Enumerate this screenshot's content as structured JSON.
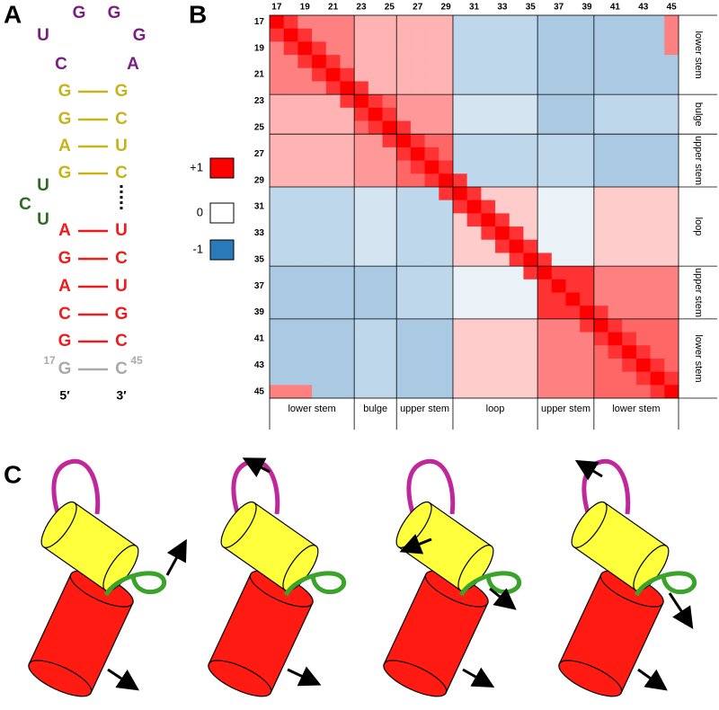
{
  "panel_labels": [
    "A",
    "B",
    "C"
  ],
  "structure": {
    "hairpin_loop": [
      "C",
      "U",
      "G",
      "G",
      "G",
      "A"
    ],
    "upper_stem": [
      [
        "G",
        "G"
      ],
      [
        "G",
        "C"
      ],
      [
        "A",
        "U"
      ],
      [
        "G",
        "C"
      ]
    ],
    "bulge": [
      "U",
      "C",
      "U"
    ],
    "lower_stem": [
      [
        "A",
        "U"
      ],
      [
        "G",
        "C"
      ],
      [
        "A",
        "U"
      ],
      [
        "C",
        "G"
      ],
      [
        "G",
        "C"
      ]
    ],
    "terminal_pair": [
      "G",
      "C"
    ],
    "terminal_numbers": [
      17,
      45
    ],
    "ends": [
      "5′",
      "3′"
    ]
  },
  "chart_data": {
    "type": "heatmap",
    "categories": [
      17,
      null,
      19,
      null,
      21,
      null,
      23,
      null,
      25,
      null,
      27,
      null,
      29,
      null,
      31,
      null,
      33,
      null,
      35,
      null,
      37,
      null,
      39,
      null,
      41,
      null,
      43,
      null,
      45
    ],
    "segments": [
      {
        "label": "lower stem",
        "range": [
          17,
          22
        ]
      },
      {
        "label": "bulge",
        "range": [
          23,
          25
        ]
      },
      {
        "label": "upper stem",
        "range": [
          26,
          29
        ]
      },
      {
        "label": "loop",
        "range": [
          30,
          35
        ]
      },
      {
        "label": "upper stem",
        "range": [
          36,
          39
        ]
      },
      {
        "label": "lower stem",
        "range": [
          40,
          45
        ]
      }
    ],
    "colorscale": {
      "ticks": [
        {
          "value": 1,
          "label": "+1"
        },
        0,
        -1
      ],
      "colors": [
        "#ff0000",
        "#ffffff",
        "#2a7ab9"
      ]
    },
    "values": [
      [
        1,
        0.8,
        0.5,
        0.5,
        0.5,
        0.5,
        0.3,
        0.3,
        0.3,
        0.3,
        0.3,
        0.3,
        0.3,
        -0.3,
        -0.3,
        -0.3,
        -0.3,
        -0.3,
        -0.3,
        -0.4,
        -0.4,
        -0.4,
        -0.4,
        -0.4,
        -0.4,
        -0.4,
        -0.4,
        -0.4,
        0.5
      ],
      [
        0.8,
        1,
        0.8,
        0.5,
        0.5,
        0.5,
        0.3,
        0.3,
        0.3,
        0.3,
        0.3,
        0.3,
        0.3,
        -0.3,
        -0.3,
        -0.3,
        -0.3,
        -0.3,
        -0.3,
        -0.4,
        -0.4,
        -0.4,
        -0.4,
        -0.4,
        -0.4,
        -0.4,
        -0.4,
        -0.4,
        0.5
      ],
      [
        0.5,
        0.8,
        1,
        0.8,
        0.5,
        0.5,
        0.3,
        0.3,
        0.3,
        0.3,
        0.3,
        0.3,
        0.3,
        -0.3,
        -0.3,
        -0.3,
        -0.3,
        -0.3,
        -0.3,
        -0.4,
        -0.4,
        -0.4,
        -0.4,
        -0.4,
        -0.4,
        -0.4,
        -0.4,
        -0.4,
        0.5
      ],
      [
        0.5,
        0.5,
        0.8,
        1,
        0.8,
        0.5,
        0.3,
        0.3,
        0.3,
        0.3,
        0.3,
        0.3,
        0.3,
        -0.3,
        -0.3,
        -0.3,
        -0.3,
        -0.3,
        -0.3,
        -0.4,
        -0.4,
        -0.4,
        -0.4,
        -0.4,
        -0.4,
        -0.4,
        -0.4,
        -0.4,
        -0.4
      ],
      [
        0.5,
        0.5,
        0.5,
        0.8,
        1,
        0.8,
        0.3,
        0.3,
        0.3,
        0.3,
        0.3,
        0.3,
        0.3,
        -0.3,
        -0.3,
        -0.3,
        -0.3,
        -0.3,
        -0.3,
        -0.4,
        -0.4,
        -0.4,
        -0.4,
        -0.4,
        -0.4,
        -0.4,
        -0.4,
        -0.4,
        -0.4
      ],
      [
        0.5,
        0.5,
        0.5,
        0.5,
        0.8,
        1,
        0.8,
        0.3,
        0.3,
        0.3,
        0.3,
        0.3,
        0.3,
        -0.3,
        -0.3,
        -0.3,
        -0.3,
        -0.3,
        -0.3,
        -0.4,
        -0.4,
        -0.4,
        -0.4,
        -0.4,
        -0.4,
        -0.4,
        -0.4,
        -0.4,
        -0.4
      ],
      [
        0.3,
        0.3,
        0.3,
        0.3,
        0.3,
        0.8,
        1,
        0.8,
        0.6,
        0.4,
        0.4,
        0.4,
        0.4,
        -0.2,
        -0.2,
        -0.2,
        -0.2,
        -0.2,
        -0.2,
        -0.4,
        -0.4,
        -0.4,
        -0.4,
        -0.3,
        -0.3,
        -0.3,
        -0.3,
        -0.3,
        -0.3
      ],
      [
        0.3,
        0.3,
        0.3,
        0.3,
        0.3,
        0.3,
        0.8,
        1,
        0.8,
        0.4,
        0.4,
        0.4,
        0.4,
        -0.2,
        -0.2,
        -0.2,
        -0.2,
        -0.2,
        -0.2,
        -0.4,
        -0.4,
        -0.4,
        -0.4,
        -0.3,
        -0.3,
        -0.3,
        -0.3,
        -0.3,
        -0.3
      ],
      [
        0.3,
        0.3,
        0.3,
        0.3,
        0.3,
        0.3,
        0.6,
        0.8,
        1,
        0.8,
        0.4,
        0.4,
        0.4,
        -0.2,
        -0.2,
        -0.2,
        -0.2,
        -0.2,
        -0.2,
        -0.4,
        -0.4,
        -0.4,
        -0.4,
        -0.3,
        -0.3,
        -0.3,
        -0.3,
        -0.3,
        -0.3
      ],
      [
        0.3,
        0.3,
        0.3,
        0.3,
        0.3,
        0.3,
        0.4,
        0.4,
        0.8,
        1,
        0.8,
        0.6,
        0.6,
        -0.3,
        -0.3,
        -0.3,
        -0.3,
        -0.3,
        -0.3,
        -0.3,
        -0.3,
        -0.3,
        -0.3,
        -0.4,
        -0.4,
        -0.4,
        -0.4,
        -0.4,
        -0.4
      ],
      [
        0.3,
        0.3,
        0.3,
        0.3,
        0.3,
        0.3,
        0.4,
        0.4,
        0.4,
        0.8,
        1,
        0.8,
        0.6,
        -0.3,
        -0.3,
        -0.3,
        -0.3,
        -0.3,
        -0.3,
        -0.3,
        -0.3,
        -0.3,
        -0.3,
        -0.4,
        -0.4,
        -0.4,
        -0.4,
        -0.4,
        -0.4
      ],
      [
        0.3,
        0.3,
        0.3,
        0.3,
        0.3,
        0.3,
        0.4,
        0.4,
        0.4,
        0.6,
        0.8,
        1,
        0.8,
        -0.3,
        -0.3,
        -0.3,
        -0.3,
        -0.3,
        -0.3,
        -0.3,
        -0.3,
        -0.3,
        -0.3,
        -0.4,
        -0.4,
        -0.4,
        -0.4,
        -0.4,
        -0.4
      ],
      [
        0.3,
        0.3,
        0.3,
        0.3,
        0.3,
        0.3,
        0.4,
        0.4,
        0.4,
        0.6,
        0.6,
        0.8,
        1,
        0.8,
        -0.3,
        -0.3,
        -0.3,
        -0.3,
        -0.3,
        -0.3,
        -0.3,
        -0.3,
        -0.3,
        -0.4,
        -0.4,
        -0.4,
        -0.4,
        -0.4,
        -0.4
      ],
      [
        -0.3,
        -0.3,
        -0.3,
        -0.3,
        -0.3,
        -0.3,
        -0.2,
        -0.2,
        -0.2,
        -0.3,
        -0.3,
        -0.3,
        0.8,
        1,
        0.8,
        0.2,
        0.2,
        0.2,
        0.2,
        -0.1,
        -0.1,
        -0.1,
        -0.1,
        0.2,
        0.2,
        0.2,
        0.2,
        0.2,
        0.2
      ],
      [
        -0.3,
        -0.3,
        -0.3,
        -0.3,
        -0.3,
        -0.3,
        -0.2,
        -0.2,
        -0.2,
        -0.3,
        -0.3,
        -0.3,
        -0.3,
        0.8,
        1,
        0.8,
        0.2,
        0.2,
        0.2,
        -0.1,
        -0.1,
        -0.1,
        -0.1,
        0.2,
        0.2,
        0.2,
        0.2,
        0.2,
        0.2
      ],
      [
        -0.3,
        -0.3,
        -0.3,
        -0.3,
        -0.3,
        -0.3,
        -0.2,
        -0.2,
        -0.2,
        -0.3,
        -0.3,
        -0.3,
        -0.3,
        0.2,
        0.8,
        1,
        0.8,
        0.2,
        0.2,
        -0.1,
        -0.1,
        -0.1,
        -0.1,
        0.2,
        0.2,
        0.2,
        0.2,
        0.2,
        0.2
      ],
      [
        -0.3,
        -0.3,
        -0.3,
        -0.3,
        -0.3,
        -0.3,
        -0.2,
        -0.2,
        -0.2,
        -0.3,
        -0.3,
        -0.3,
        -0.3,
        0.2,
        0.2,
        0.8,
        1,
        0.8,
        0.2,
        -0.1,
        -0.1,
        -0.1,
        -0.1,
        0.2,
        0.2,
        0.2,
        0.2,
        0.2,
        0.2
      ],
      [
        -0.3,
        -0.3,
        -0.3,
        -0.3,
        -0.3,
        -0.3,
        -0.2,
        -0.2,
        -0.2,
        -0.3,
        -0.3,
        -0.3,
        -0.3,
        0.2,
        0.2,
        0.2,
        0.8,
        1,
        0.8,
        -0.1,
        -0.1,
        -0.1,
        -0.1,
        0.2,
        0.2,
        0.2,
        0.2,
        0.2,
        0.2
      ],
      [
        -0.3,
        -0.3,
        -0.3,
        -0.3,
        -0.3,
        -0.3,
        -0.2,
        -0.2,
        -0.2,
        -0.3,
        -0.3,
        -0.3,
        -0.3,
        0.2,
        0.2,
        0.2,
        0.2,
        0.8,
        1,
        0.8,
        -0.1,
        -0.1,
        -0.1,
        0.2,
        0.2,
        0.2,
        0.2,
        0.2,
        0.2
      ],
      [
        -0.4,
        -0.4,
        -0.4,
        -0.4,
        -0.4,
        -0.4,
        -0.4,
        -0.4,
        -0.4,
        -0.3,
        -0.3,
        -0.3,
        -0.3,
        -0.1,
        -0.1,
        -0.1,
        -0.1,
        -0.1,
        0.8,
        1,
        0.8,
        0.8,
        0.8,
        0.5,
        0.5,
        0.5,
        0.5,
        0.5,
        0.5
      ],
      [
        -0.4,
        -0.4,
        -0.4,
        -0.4,
        -0.4,
        -0.4,
        -0.4,
        -0.4,
        -0.4,
        -0.3,
        -0.3,
        -0.3,
        -0.3,
        -0.1,
        -0.1,
        -0.1,
        -0.1,
        -0.1,
        -0.1,
        0.8,
        1,
        0.8,
        0.8,
        0.5,
        0.5,
        0.5,
        0.5,
        0.5,
        0.5
      ],
      [
        -0.4,
        -0.4,
        -0.4,
        -0.4,
        -0.4,
        -0.4,
        -0.4,
        -0.4,
        -0.4,
        -0.3,
        -0.3,
        -0.3,
        -0.3,
        -0.1,
        -0.1,
        -0.1,
        -0.1,
        -0.1,
        -0.1,
        0.8,
        0.8,
        1,
        0.8,
        0.5,
        0.5,
        0.5,
        0.5,
        0.5,
        0.5
      ],
      [
        -0.4,
        -0.4,
        -0.4,
        -0.4,
        -0.4,
        -0.4,
        -0.4,
        -0.4,
        -0.4,
        -0.3,
        -0.3,
        -0.3,
        -0.3,
        -0.1,
        -0.1,
        -0.1,
        -0.1,
        -0.1,
        -0.1,
        0.8,
        0.8,
        0.8,
        1,
        0.8,
        0.5,
        0.5,
        0.5,
        0.5,
        0.5
      ],
      [
        -0.4,
        -0.4,
        -0.4,
        -0.4,
        -0.4,
        -0.4,
        -0.3,
        -0.3,
        -0.3,
        -0.4,
        -0.4,
        -0.4,
        -0.4,
        0.2,
        0.2,
        0.2,
        0.2,
        0.2,
        0.2,
        0.5,
        0.5,
        0.5,
        0.8,
        1,
        0.8,
        0.6,
        0.6,
        0.6,
        0.6
      ],
      [
        -0.4,
        -0.4,
        -0.4,
        -0.4,
        -0.4,
        -0.4,
        -0.3,
        -0.3,
        -0.3,
        -0.4,
        -0.4,
        -0.4,
        -0.4,
        0.2,
        0.2,
        0.2,
        0.2,
        0.2,
        0.2,
        0.5,
        0.5,
        0.5,
        0.5,
        0.8,
        1,
        0.8,
        0.6,
        0.6,
        0.6
      ],
      [
        -0.4,
        -0.4,
        -0.4,
        -0.4,
        -0.4,
        -0.4,
        -0.3,
        -0.3,
        -0.3,
        -0.4,
        -0.4,
        -0.4,
        -0.4,
        0.2,
        0.2,
        0.2,
        0.2,
        0.2,
        0.2,
        0.5,
        0.5,
        0.5,
        0.5,
        0.6,
        0.8,
        1,
        0.8,
        0.6,
        0.6
      ],
      [
        -0.4,
        -0.4,
        -0.4,
        -0.4,
        -0.4,
        -0.4,
        -0.3,
        -0.3,
        -0.3,
        -0.4,
        -0.4,
        -0.4,
        -0.4,
        0.2,
        0.2,
        0.2,
        0.2,
        0.2,
        0.2,
        0.5,
        0.5,
        0.5,
        0.5,
        0.6,
        0.6,
        0.8,
        1,
        0.8,
        0.6
      ],
      [
        -0.4,
        -0.4,
        -0.4,
        -0.4,
        -0.4,
        -0.4,
        -0.3,
        -0.3,
        -0.3,
        -0.4,
        -0.4,
        -0.4,
        -0.4,
        0.2,
        0.2,
        0.2,
        0.2,
        0.2,
        0.2,
        0.5,
        0.5,
        0.5,
        0.5,
        0.6,
        0.6,
        0.6,
        0.8,
        1,
        0.8
      ],
      [
        0.5,
        0.5,
        0.5,
        -0.4,
        -0.4,
        -0.4,
        -0.3,
        -0.3,
        -0.3,
        -0.4,
        -0.4,
        -0.4,
        -0.4,
        0.2,
        0.2,
        0.2,
        0.2,
        0.2,
        0.2,
        0.5,
        0.5,
        0.5,
        0.5,
        0.6,
        0.6,
        0.6,
        0.6,
        0.8,
        1
      ]
    ]
  }
}
